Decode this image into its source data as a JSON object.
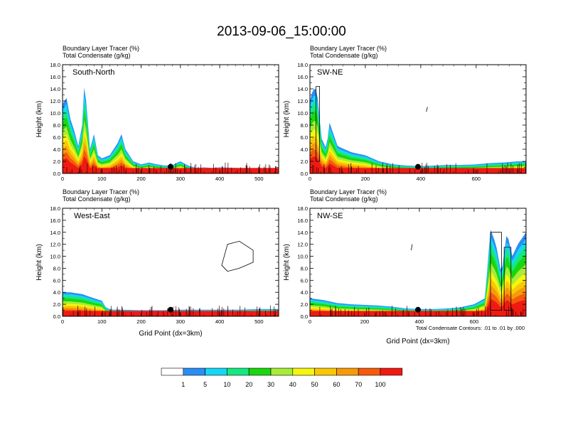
{
  "figure": {
    "title": "2013-09-06_15:00:00",
    "subtitle_line1": "Boundary Layer Tracer   (%)",
    "subtitle_line2": "Total Condensate   (g/kg)",
    "contour_note": "Total Condensate Contours: .01 to .01 by .000",
    "xlabel": "Grid Point (dx=3km)",
    "ylabel": "Height (km)"
  },
  "colors": {
    "levels": [
      "#ffffff",
      "#2a8ef5",
      "#16d6f5",
      "#15e87f",
      "#1ad60e",
      "#a6ec38",
      "#f6f50f",
      "#f8c807",
      "#f59b0a",
      "#f55b0c",
      "#ef1a12"
    ]
  },
  "colorbar": {
    "labels": [
      "1",
      "5",
      "10",
      "20",
      "30",
      "40",
      "50",
      "60",
      "70",
      "100"
    ]
  },
  "chart_data": [
    {
      "type": "heatmap",
      "name": "South-North",
      "title": "South-North",
      "xlim": [
        0,
        550
      ],
      "ylim": [
        0,
        18
      ],
      "xticks": [
        0,
        100,
        200,
        300,
        400,
        500
      ],
      "yticks": [
        0.0,
        2.0,
        4.0,
        6.0,
        8.0,
        10.0,
        12.0,
        14.0,
        16.0,
        18.0
      ],
      "marker_x": 275,
      "marker_height_km": 1.1,
      "profile": {
        "x": [
          0,
          10,
          20,
          30,
          40,
          50,
          55,
          60,
          70,
          80,
          90,
          100,
          120,
          140,
          150,
          160,
          180,
          200,
          220,
          240,
          260,
          280,
          300,
          320,
          340,
          360,
          380,
          400,
          450,
          500,
          550
        ],
        "top_km": [
          11.5,
          12.5,
          9.0,
          7.0,
          4.5,
          8.0,
          14.2,
          12.0,
          4.0,
          6.5,
          3.0,
          2.5,
          3.0,
          5.0,
          6.5,
          4.0,
          2.0,
          1.5,
          1.8,
          1.5,
          1.3,
          1.4,
          2.0,
          1.3,
          0.9,
          1.0,
          0.9,
          1.0,
          0.9,
          0.9,
          0.9
        ]
      },
      "condensate_contours": []
    },
    {
      "type": "heatmap",
      "name": "SW-NE",
      "title": "SW-NE",
      "xlim": [
        0,
        780
      ],
      "ylim": [
        0,
        18
      ],
      "xticks": [
        0,
        200,
        400,
        600
      ],
      "yticks": [
        0.0,
        2.0,
        4.0,
        6.0,
        8.0,
        10.0,
        12.0,
        14.0,
        16.0,
        18.0
      ],
      "marker_x": 390,
      "marker_height_km": 1.1,
      "profile": {
        "x": [
          0,
          10,
          20,
          30,
          40,
          60,
          70,
          100,
          150,
          200,
          250,
          300,
          350,
          400,
          450,
          500,
          550,
          600,
          650,
          700,
          750,
          780
        ],
        "top_km": [
          12.0,
          13.8,
          14.2,
          12.0,
          6.0,
          4.0,
          8.5,
          4.5,
          3.5,
          3.0,
          2.0,
          1.5,
          1.3,
          1.2,
          1.3,
          1.4,
          1.4,
          1.5,
          1.7,
          1.8,
          2.0,
          2.0
        ]
      },
      "condensate_contours": [
        {
          "x": [
            22,
            35,
            35,
            22
          ],
          "height_km": [
            2,
            2,
            14.4,
            14.4
          ]
        },
        {
          "x": [
            420,
            424
          ],
          "height_km": [
            10.2,
            11.0
          ]
        }
      ]
    },
    {
      "type": "heatmap",
      "name": "West-East",
      "title": "West-East",
      "xlim": [
        0,
        550
      ],
      "ylim": [
        0,
        18
      ],
      "xticks": [
        0,
        100,
        200,
        300,
        400,
        500
      ],
      "yticks": [
        0.0,
        2.0,
        4.0,
        6.0,
        8.0,
        10.0,
        12.0,
        14.0,
        16.0,
        18.0
      ],
      "marker_x": 275,
      "marker_height_km": 1.1,
      "profile": {
        "x": [
          0,
          20,
          50,
          80,
          100,
          110,
          120,
          130,
          150,
          200,
          250,
          300,
          350,
          400,
          450,
          500,
          550
        ],
        "top_km": [
          4.0,
          4.0,
          3.7,
          3.0,
          2.6,
          1.5,
          1.2,
          1.1,
          1.1,
          1.0,
          1.0,
          1.1,
          1.1,
          1.1,
          1.1,
          1.2,
          1.2
        ]
      },
      "condensate_contours": [
        {
          "x": [
            405,
            420,
            450,
            485,
            485,
            450,
            420,
            405
          ],
          "height_km": [
            8.5,
            12.0,
            12.5,
            11.0,
            9.0,
            8.0,
            7.5,
            8.5
          ]
        }
      ]
    },
    {
      "type": "heatmap",
      "name": "NW-SE",
      "title": "NW-SE",
      "xlim": [
        0,
        790
      ],
      "ylim": [
        0,
        18
      ],
      "xticks": [
        0,
        200,
        400,
        600
      ],
      "yticks": [
        0.0,
        2.0,
        4.0,
        6.0,
        8.0,
        10.0,
        12.0,
        14.0,
        16.0,
        18.0
      ],
      "marker_x": 395,
      "marker_height_km": 1.1,
      "profile": {
        "x": [
          0,
          50,
          100,
          150,
          200,
          250,
          300,
          350,
          400,
          450,
          500,
          550,
          600,
          620,
          640,
          660,
          680,
          700,
          720,
          740,
          760,
          790
        ],
        "top_km": [
          3.0,
          2.7,
          2.2,
          2.0,
          1.9,
          1.8,
          1.6,
          1.3,
          1.2,
          1.2,
          1.3,
          1.5,
          2.0,
          2.5,
          3.0,
          14.5,
          12.0,
          7.0,
          14.0,
          10.0,
          12.0,
          14.0
        ]
      },
      "condensate_contours": [
        {
          "x": [
            370,
            374
          ],
          "height_km": [
            11.0,
            12.0
          ]
        },
        {
          "x": [
            660,
            700,
            700,
            660
          ],
          "height_km": [
            1.0,
            1.0,
            14.0,
            14.0
          ]
        },
        {
          "x": [
            710,
            735,
            735,
            710
          ],
          "height_km": [
            1.0,
            1.0,
            11.5,
            11.5
          ]
        }
      ]
    }
  ]
}
